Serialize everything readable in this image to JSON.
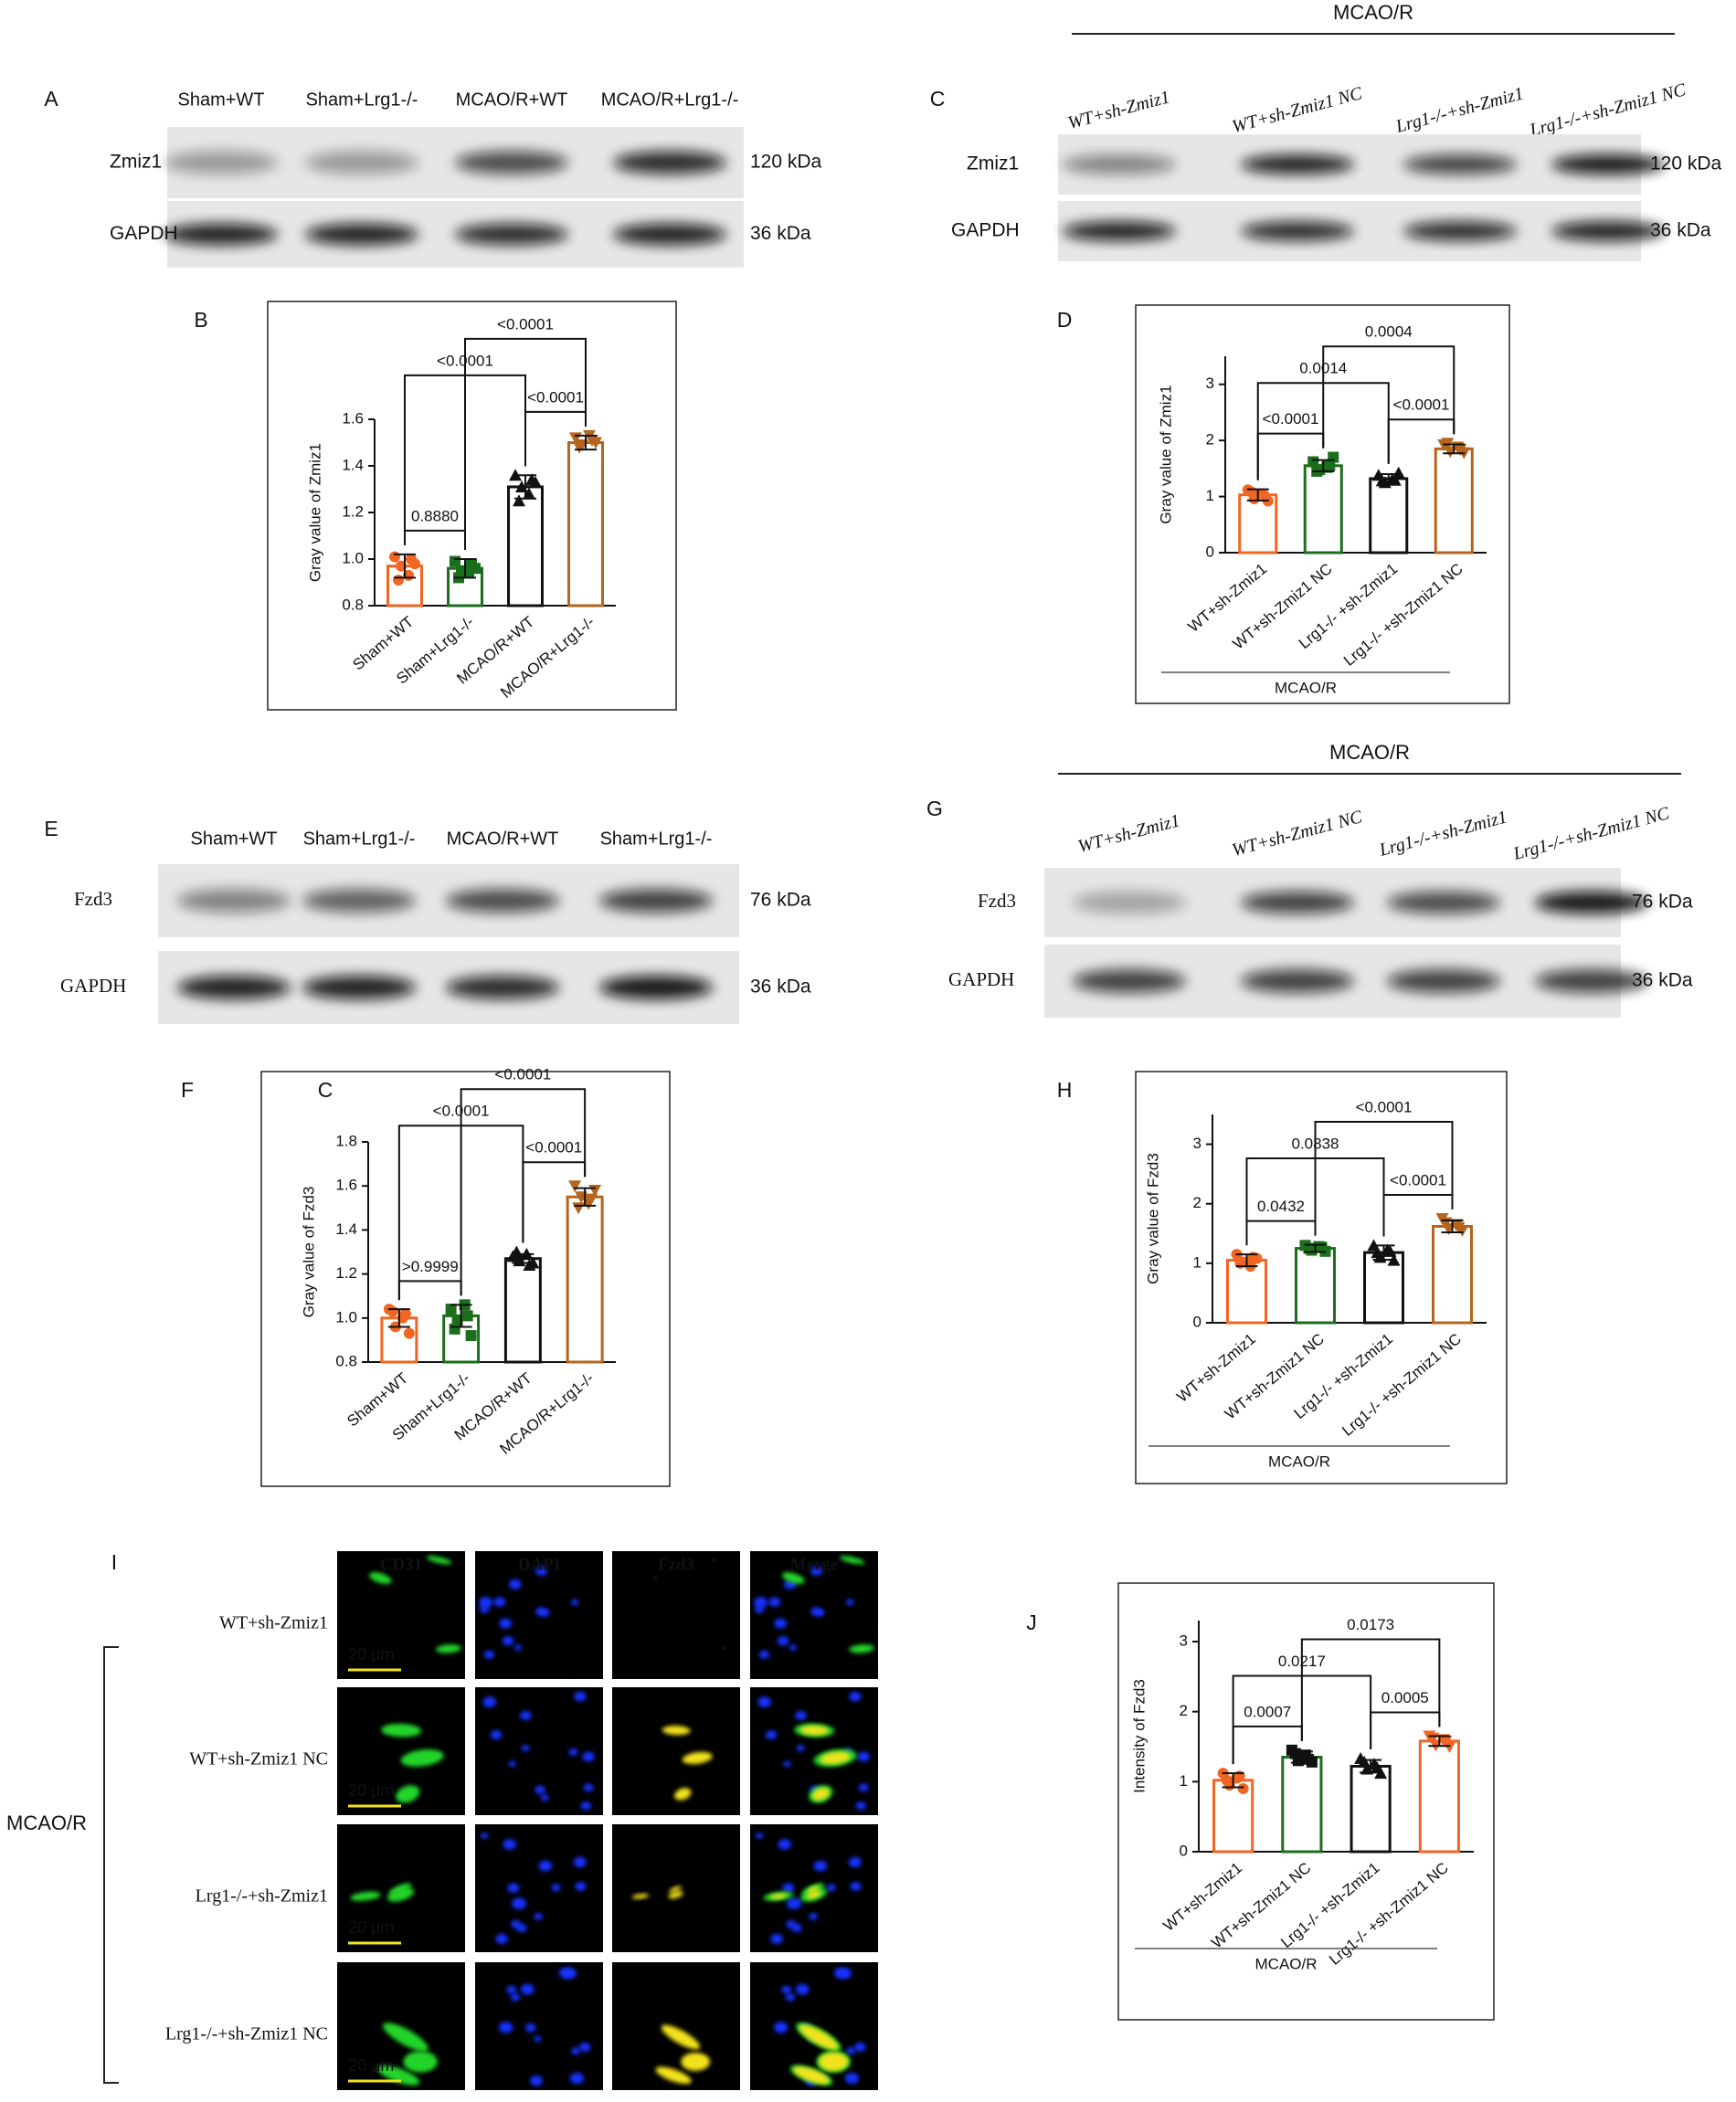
{
  "blots": [
    {
      "panel": "A",
      "lanes": [
        "Sham+WT",
        "Sham+Lrg1-/-",
        "MCAO/R+WT",
        "MCAO/R+Lrg1-/-"
      ],
      "rows": [
        {
          "name": "Zmiz1",
          "size": "120 kDa"
        },
        {
          "name": "GAPDH",
          "size": "36 kDa"
        }
      ]
    },
    {
      "panel": "C",
      "group": "MCAO/R",
      "lanes": [
        "WT+sh-Zmiz1",
        "WT+sh-Zmiz1 NC",
        "Lrg1-/-+sh-Zmiz1",
        "Lrg1-/-+sh-Zmiz1 NC"
      ],
      "rows": [
        {
          "name": "Zmiz1",
          "size": "120 kDa"
        },
        {
          "name": "GAPDH",
          "size": "36 kDa"
        }
      ]
    },
    {
      "panel": "E",
      "lanes": [
        "Sham+WT",
        "Sham+Lrg1-/-",
        "MCAO/R+WT",
        "Sham+Lrg1-/-"
      ],
      "rows": [
        {
          "name": "Fzd3",
          "size": "76 kDa"
        },
        {
          "name": "GAPDH",
          "size": "36 kDa"
        }
      ]
    },
    {
      "panel": "G",
      "group": "MCAO/R",
      "lanes": [
        "WT+sh-Zmiz1",
        "WT+sh-Zmiz1 NC",
        "Lrg1-/-+sh-Zmiz1",
        "Lrg1-/-+sh-Zmiz1 NC"
      ],
      "rows": [
        {
          "name": "Fzd3",
          "size": "76 kDa"
        },
        {
          "name": "GAPDH",
          "size": "36 kDa"
        }
      ]
    }
  ],
  "chart_data": [
    {
      "type": "bar",
      "panel": "B",
      "ylabel": "Gray value of Zmiz1",
      "categories": [
        "Sham+WT",
        "Sham+Lrg1-/-",
        "MCAO/R+WT",
        "MCAO/R+Lrg1-/-"
      ],
      "values": [
        0.97,
        0.96,
        1.31,
        1.5
      ],
      "errors": [
        0.05,
        0.04,
        0.05,
        0.03
      ],
      "points": [
        [
          1.01,
          0.97,
          0.93,
          0.98,
          0.91,
          1.0
        ],
        [
          0.99,
          0.95,
          0.94,
          0.96,
          0.92,
          0.98
        ],
        [
          1.36,
          1.31,
          1.28,
          1.33,
          1.25,
          1.34
        ],
        [
          1.52,
          1.49,
          1.53,
          1.5,
          1.48,
          1.51
        ]
      ],
      "colors": [
        "#f26522",
        "#1b6e1b",
        "#111111",
        "#b5651d"
      ],
      "point_colors": [
        "#f26522",
        "#1b6e1b",
        "#111111",
        "#b5651d"
      ],
      "point_shapes": [
        "circle",
        "square",
        "triangle",
        "triangle-down"
      ],
      "ylim": [
        0.8,
        1.6
      ],
      "yticks": [
        0.8,
        {
          "value": 1,
          "label": "1.0"
        },
        1.2,
        1.4,
        1.6
      ],
      "comparisons": [
        {
          "between": [
            0,
            1
          ],
          "label": "0.8880"
        },
        {
          "between": [
            2,
            3
          ],
          "label": "<0.0001"
        },
        {
          "between": [
            0,
            2
          ],
          "label": "<0.0001"
        },
        {
          "between": [
            1,
            3
          ],
          "label": "<0.0001"
        }
      ]
    },
    {
      "type": "bar",
      "panel": "D",
      "ylabel": "Gray value of Zmiz1",
      "group_label": "MCAO/R",
      "categories": [
        "WT+sh-Zmiz1",
        "WT+sh-Zmiz1 NC",
        "Lrg1-/- +sh-Zmiz1",
        "Lrg1-/- +sh-Zmiz1 NC"
      ],
      "values": [
        1.03,
        1.55,
        1.32,
        1.85
      ],
      "errors": [
        0.1,
        0.1,
        0.08,
        0.08
      ],
      "points": [
        [
          1.12,
          0.96,
          1.05,
          0.92,
          1.08,
          1.02
        ],
        [
          1.62,
          1.48,
          1.52,
          1.7,
          1.45,
          1.55
        ],
        [
          1.38,
          1.25,
          1.3,
          1.42,
          1.28,
          1.29
        ],
        [
          1.92,
          1.8,
          1.88,
          1.78,
          1.95,
          1.84
        ]
      ],
      "colors": [
        "#f26522",
        "#1b6e1b",
        "#111111",
        "#b5651d"
      ],
      "point_colors": [
        "#f26522",
        "#1b6e1b",
        "#111111",
        "#b5651d"
      ],
      "point_shapes": [
        "circle",
        "square",
        "triangle",
        "triangle-down"
      ],
      "ylim": [
        0,
        3.5
      ],
      "yticks": [
        0,
        1,
        2,
        3
      ],
      "comparisons": [
        {
          "between": [
            0,
            1
          ],
          "label": "<0.0001"
        },
        {
          "between": [
            2,
            3
          ],
          "label": "<0.0001"
        },
        {
          "between": [
            0,
            2
          ],
          "label": "0.0014"
        },
        {
          "between": [
            1,
            3
          ],
          "label": "0.0004"
        }
      ]
    },
    {
      "type": "bar",
      "panel": "F",
      "annotation": "C",
      "ylabel": "Gray value of Fzd3",
      "categories": [
        "Sham+WT",
        "Sham+Lrg1-/-",
        "MCAO/R+WT",
        "MCAO/R+Lrg1-/-"
      ],
      "values": [
        1.0,
        1.01,
        1.27,
        1.55
      ],
      "errors": [
        0.04,
        0.05,
        0.02,
        0.04
      ],
      "points": [
        [
          1.04,
          0.96,
          1.0,
          0.93,
          1.03,
          1.02
        ],
        [
          1.04,
          0.99,
          1.06,
          0.92,
          0.95,
          1.01
        ],
        [
          1.28,
          1.26,
          1.29,
          1.25,
          1.3,
          1.24
        ],
        [
          1.6,
          1.55,
          1.52,
          1.58,
          1.5,
          1.54
        ]
      ],
      "colors": [
        "#f26522",
        "#1b6e1b",
        "#111111",
        "#b5651d"
      ],
      "point_colors": [
        "#f26522",
        "#1b6e1b",
        "#111111",
        "#b5651d"
      ],
      "point_shapes": [
        "circle",
        "square",
        "triangle",
        "triangle-down"
      ],
      "ylim": [
        0.8,
        1.8
      ],
      "yticks": [
        0.8,
        {
          "value": 1,
          "label": "1.0"
        },
        1.2,
        1.4,
        1.6,
        1.8
      ],
      "comparisons": [
        {
          "between": [
            0,
            1
          ],
          "label": ">0.9999"
        },
        {
          "between": [
            2,
            3
          ],
          "label": "<0.0001"
        },
        {
          "between": [
            0,
            2
          ],
          "label": "<0.0001"
        },
        {
          "between": [
            1,
            3
          ],
          "label": "<0.0001"
        }
      ]
    },
    {
      "type": "bar",
      "panel": "H",
      "ylabel": "Gray value of Fzd3",
      "group_label": "MCAO/R",
      "categories": [
        "WT+sh-Zmiz1",
        "WT+sh-Zmiz1 NC",
        "Lrg1-/- +sh-Zmiz1",
        "Lrg1-/- +sh-Zmiz1 NC"
      ],
      "values": [
        1.05,
        1.25,
        1.18,
        1.62
      ],
      "errors": [
        0.1,
        0.06,
        0.12,
        0.1
      ],
      "points": [
        [
          1.15,
          1.02,
          0.95,
          1.08,
          1.0,
          1.1
        ],
        [
          1.3,
          1.22,
          1.28,
          1.2,
          1.25,
          1.27
        ],
        [
          1.3,
          1.1,
          1.22,
          1.05,
          1.18,
          1.2
        ],
        [
          1.75,
          1.58,
          1.65,
          1.55,
          1.68,
          1.6
        ]
      ],
      "colors": [
        "#f26522",
        "#1b6e1b",
        "#111111",
        "#b5651d"
      ],
      "point_colors": [
        "#f26522",
        "#1b6e1b",
        "#111111",
        "#b5651d"
      ],
      "point_shapes": [
        "circle",
        "square",
        "triangle",
        "triangle-down"
      ],
      "ylim": [
        0,
        3.5
      ],
      "yticks": [
        0,
        1,
        2,
        3
      ],
      "comparisons": [
        {
          "between": [
            0,
            1
          ],
          "label": "0.0432"
        },
        {
          "between": [
            2,
            3
          ],
          "label": "<0.0001"
        },
        {
          "between": [
            0,
            2
          ],
          "label": "0.0838"
        },
        {
          "between": [
            1,
            3
          ],
          "label": "<0.0001"
        }
      ]
    },
    {
      "type": "bar",
      "panel": "J",
      "ylabel": "Intensity of Fzd3",
      "group_label": "MCAO/R",
      "categories": [
        "WT+sh-Zmiz1",
        "WT+sh-Zmiz1 NC",
        "Lrg1-/- +sh-Zmiz1",
        "Lrg1-/- +sh-Zmiz1 NC"
      ],
      "values": [
        1.02,
        1.35,
        1.22,
        1.58
      ],
      "errors": [
        0.1,
        0.08,
        0.09,
        0.07
      ],
      "points": [
        [
          1.12,
          0.95,
          1.05,
          0.9,
          1.02,
          1.08
        ],
        [
          1.45,
          1.3,
          1.38,
          1.28,
          1.4,
          1.32
        ],
        [
          1.33,
          1.18,
          1.25,
          1.12,
          1.28,
          1.2
        ],
        [
          1.65,
          1.52,
          1.6,
          1.5,
          1.62,
          1.58
        ]
      ],
      "colors": [
        "#f26522",
        "#1b6e1b",
        "#111111",
        "#f26522"
      ],
      "point_colors": [
        "#f26522",
        "#111111",
        "#111111",
        "#f26522"
      ],
      "point_shapes": [
        "circle",
        "square",
        "triangle",
        "triangle-down"
      ],
      "ylim": [
        0,
        3.3
      ],
      "yticks": [
        0,
        1,
        2,
        3
      ],
      "comparisons": [
        {
          "between": [
            0,
            1
          ],
          "label": "0.0007"
        },
        {
          "between": [
            2,
            3
          ],
          "label": "0.0005"
        },
        {
          "between": [
            0,
            2
          ],
          "label": "0.0217"
        },
        {
          "between": [
            1,
            3
          ],
          "label": "0.0173"
        }
      ]
    }
  ],
  "if_panel": {
    "panel": "I",
    "columns": [
      "CD31",
      "DAPI",
      "Fzd3",
      "Merge"
    ],
    "rows": [
      "WT+sh-Zmiz1",
      "WT+sh-Zmiz1 NC",
      "Lrg1-/-+sh-Zmiz1",
      "Lrg1-/-+sh-Zmiz1 NC"
    ],
    "scale_bar": "20 μm",
    "group": "MCAO/R"
  }
}
